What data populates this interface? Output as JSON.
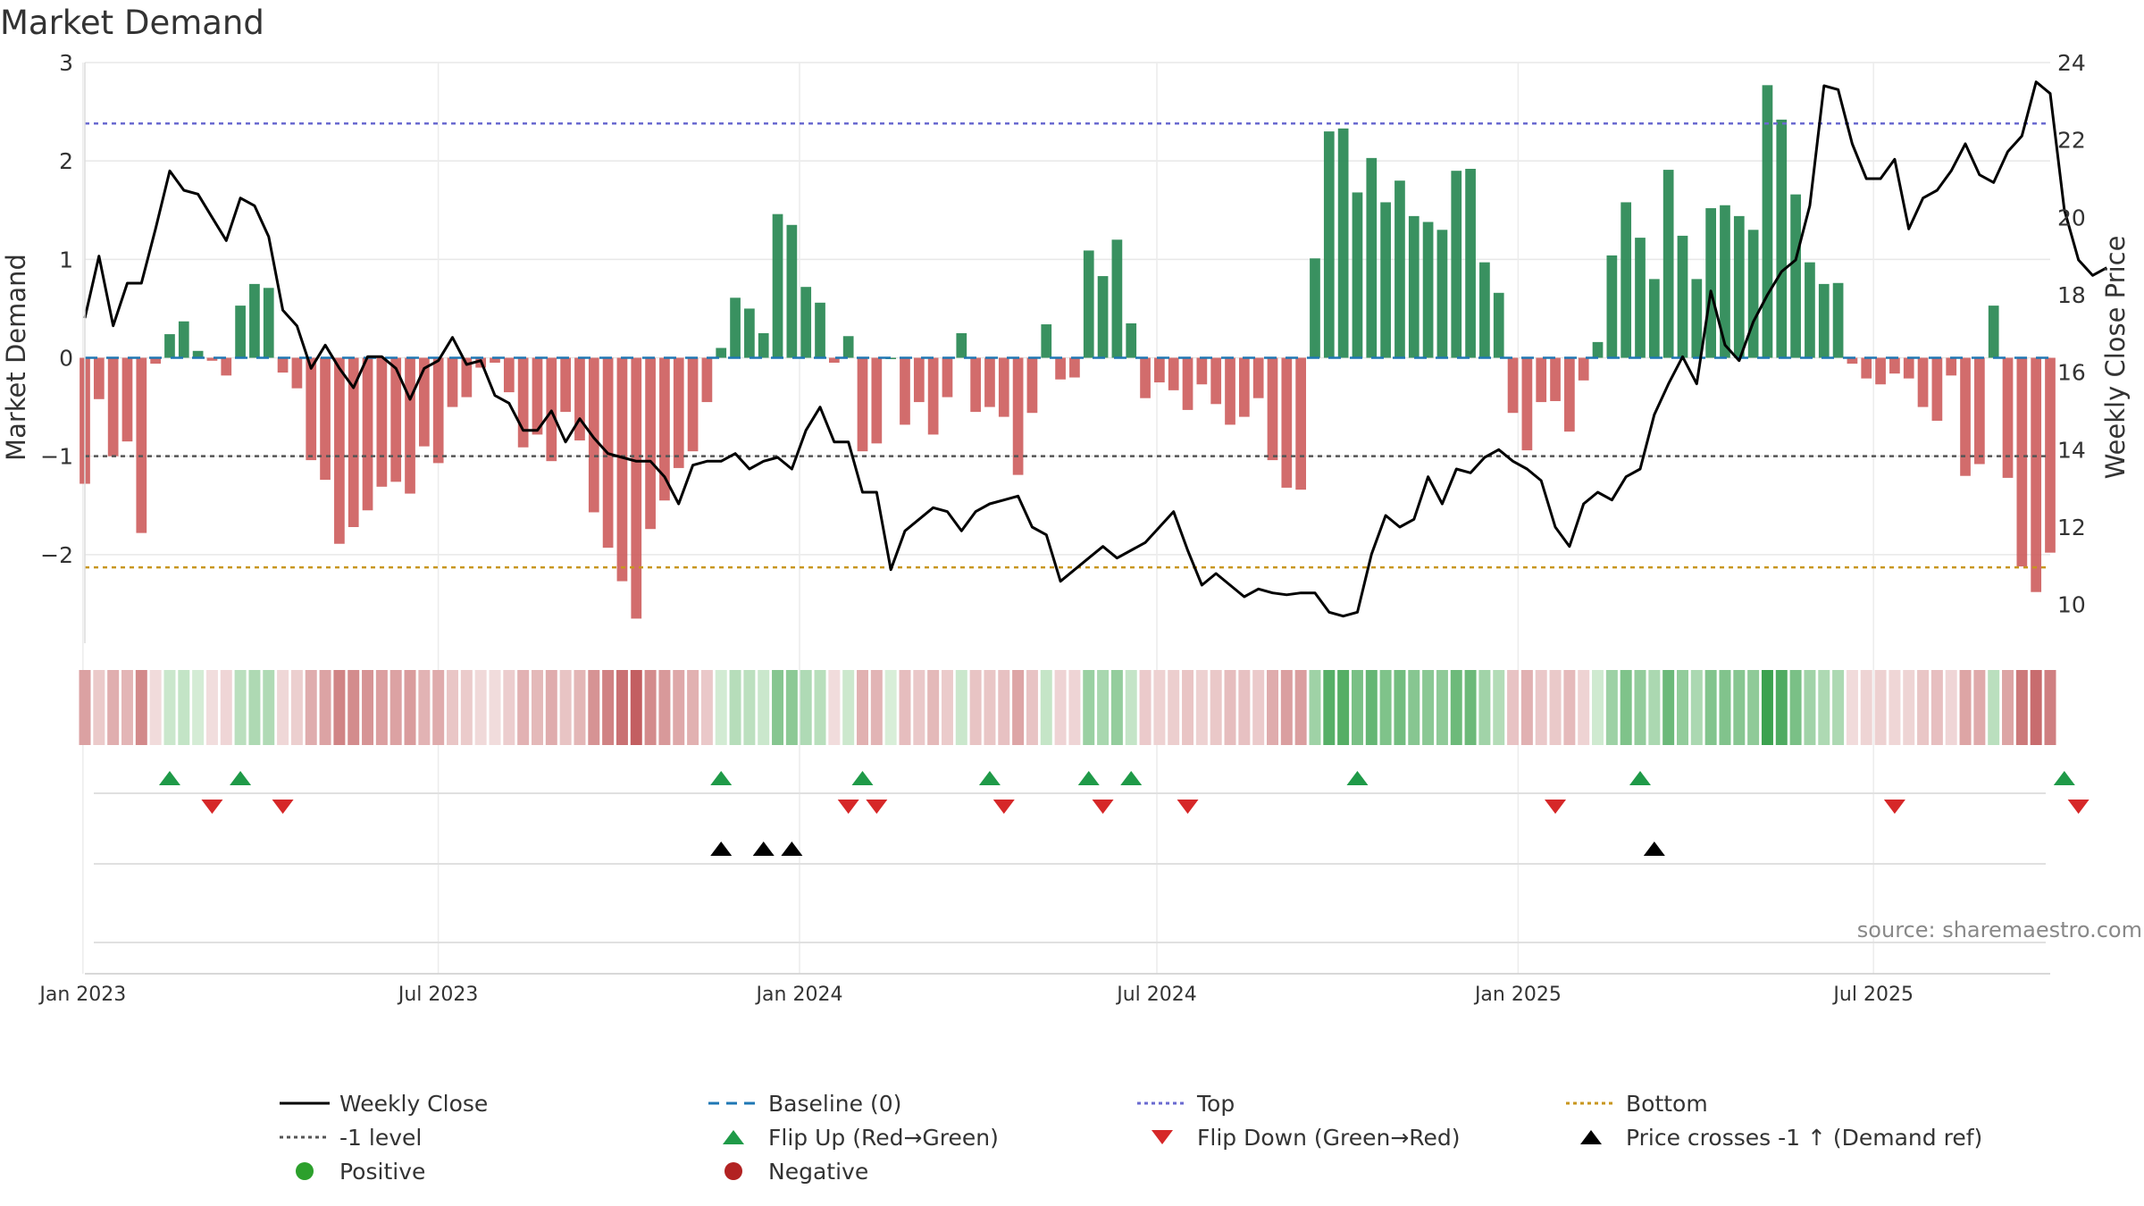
{
  "chart_data": {
    "type": "bar+line",
    "title": "Market Demand",
    "ylabel_left": "Market Demand",
    "ylabel_right": "Weekly Close Price",
    "source": "source: sharemaestro.com",
    "ylim_left": [
      -2.9,
      3.0
    ],
    "ylim_right": [
      9.0,
      24.0
    ],
    "yticks_left": [
      3,
      2,
      1,
      0,
      -1,
      -2
    ],
    "ytick_labels_left": [
      "3",
      "2",
      "1",
      "0",
      "−1",
      "−2"
    ],
    "yticks_right": [
      24,
      22,
      20,
      18,
      16,
      14,
      12,
      10
    ],
    "x_start": "2023-01-02",
    "x_end": "2025-09-29",
    "x_tick_dates": [
      "2023-01-01",
      "2023-07-01",
      "2024-01-01",
      "2024-07-01",
      "2025-01-01",
      "2025-07-01"
    ],
    "x_tick_labels": [
      "Jan 2023",
      "Jul 2023",
      "Jan 2024",
      "Jul 2024",
      "Jan 2025",
      "Jul 2025"
    ],
    "levels": {
      "top": 2.38,
      "minus_one": -1.0,
      "bottom": -2.13,
      "baseline": 0
    },
    "colors": {
      "positive": "#2e8b57",
      "negative": "#cd5c5c",
      "close_line": "#000000",
      "top_line": "#6a6ad0",
      "bottom_line": "#c8961e",
      "minus_one_line": "#555555",
      "baseline": "#1f77b4",
      "flip_up": "#1f9a48",
      "flip_down": "#d62728",
      "cross_marker": "#000000",
      "grid": "#e8e8e8",
      "dot_positive": "#2ca02c",
      "dot_negative": "#b22222"
    },
    "demand": [
      -1.28,
      -0.42,
      -1.0,
      -0.85,
      -1.78,
      -0.06,
      0.24,
      0.37,
      0.07,
      -0.03,
      -0.18,
      0.53,
      0.75,
      0.71,
      -0.15,
      -0.31,
      -1.04,
      -1.24,
      -1.89,
      -1.72,
      -1.55,
      -1.31,
      -1.26,
      -1.38,
      -0.9,
      -1.07,
      -0.5,
      -0.4,
      -0.1,
      -0.05,
      -0.35,
      -0.91,
      -0.78,
      -1.05,
      -0.55,
      -0.84,
      -1.57,
      -1.93,
      -2.27,
      -2.65,
      -1.74,
      -1.45,
      -1.12,
      -0.95,
      -0.45,
      0.1,
      0.61,
      0.5,
      0.25,
      1.46,
      1.35,
      0.72,
      0.56,
      -0.05,
      0.22,
      -0.95,
      -0.87,
      0.0,
      -0.68,
      -0.45,
      -0.78,
      -0.4,
      0.25,
      -0.55,
      -0.5,
      -0.6,
      -1.19,
      -0.56,
      0.34,
      -0.22,
      -0.2,
      1.09,
      0.83,
      1.2,
      0.35,
      -0.41,
      -0.25,
      -0.33,
      -0.53,
      -0.27,
      -0.47,
      -0.68,
      -0.6,
      -0.41,
      -1.04,
      -1.32,
      -1.34,
      1.01,
      2.3,
      2.33,
      1.68,
      2.03,
      1.58,
      1.8,
      1.44,
      1.38,
      1.3,
      1.9,
      1.92,
      0.97,
      0.66,
      -0.56,
      -0.94,
      -0.45,
      -0.44,
      -0.75,
      -0.23,
      0.16,
      1.04,
      1.58,
      1.22,
      0.8,
      1.91,
      1.24,
      0.8,
      1.52,
      1.55,
      1.44,
      1.3,
      2.77,
      2.42,
      1.66,
      0.97,
      0.75,
      0.76,
      -0.06,
      -0.21,
      -0.27,
      -0.16,
      -0.21,
      -0.5,
      -0.64,
      -0.18,
      -1.2,
      -1.08,
      0.53,
      -1.22,
      -2.12,
      -2.38,
      -1.98
    ],
    "close": [
      17.4,
      19.0,
      17.2,
      18.3,
      18.3,
      19.7,
      21.2,
      20.7,
      20.6,
      20.0,
      19.4,
      20.5,
      20.3,
      19.5,
      17.6,
      17.2,
      16.1,
      16.7,
      16.1,
      15.6,
      16.4,
      16.4,
      16.1,
      15.3,
      16.1,
      16.3,
      16.9,
      16.2,
      16.3,
      15.4,
      15.2,
      14.5,
      14.5,
      15.0,
      14.2,
      14.8,
      14.3,
      13.9,
      13.8,
      13.7,
      13.7,
      13.3,
      12.6,
      13.6,
      13.7,
      13.7,
      13.9,
      13.5,
      13.7,
      13.8,
      13.5,
      14.5,
      15.1,
      14.2,
      14.2,
      12.9,
      12.9,
      10.9,
      11.9,
      12.2,
      12.5,
      12.4,
      11.9,
      12.4,
      12.6,
      12.7,
      12.8,
      12.0,
      11.8,
      10.6,
      10.9,
      11.2,
      11.5,
      11.2,
      11.4,
      11.6,
      12.0,
      12.4,
      11.4,
      10.5,
      10.8,
      10.5,
      10.2,
      10.4,
      10.3,
      10.25,
      10.3,
      10.3,
      9.8,
      9.7,
      9.8,
      11.3,
      12.3,
      12.0,
      12.2,
      13.3,
      12.6,
      13.5,
      13.4,
      13.8,
      14.0,
      13.7,
      13.5,
      13.2,
      12.0,
      11.5,
      12.6,
      12.9,
      12.7,
      13.3,
      13.5,
      14.9,
      15.7,
      16.4,
      15.7,
      18.1,
      16.7,
      16.3,
      17.3,
      18.0,
      18.6,
      18.9,
      20.3,
      23.4,
      23.3,
      21.9,
      21.0,
      21.0,
      21.5,
      19.7,
      20.5,
      20.7,
      21.2,
      21.9,
      21.1,
      20.9,
      21.7,
      22.1,
      23.5,
      23.2,
      20.2,
      18.9,
      18.5,
      18.7
    ],
    "flip_up_weeks": [
      6,
      11,
      45,
      55,
      64,
      71,
      74,
      90,
      110,
      140
    ],
    "flip_down_weeks": [
      9,
      14,
      54,
      56,
      65,
      72,
      78,
      104,
      128,
      141
    ],
    "price_cross_weeks": [
      45,
      48,
      50,
      111
    ],
    "legend": [
      {
        "label": "Weekly Close",
        "symbol": "line-solid",
        "color": "#000000"
      },
      {
        "label": "Baseline (0)",
        "symbol": "line-dashed",
        "color": "#1f77b4"
      },
      {
        "label": "Top",
        "symbol": "line-dotted",
        "color": "#6a6ad0"
      },
      {
        "label": "Bottom",
        "symbol": "line-dotted",
        "color": "#c8961e"
      },
      {
        "label": "-1 level",
        "symbol": "line-dotted",
        "color": "#555555"
      },
      {
        "label": "Flip Up (Red→Green)",
        "symbol": "tri-up",
        "color": "#1f9a48"
      },
      {
        "label": "Flip Down (Green→Red)",
        "symbol": "tri-down",
        "color": "#d62728"
      },
      {
        "label": "Price crosses -1 ↑ (Demand ref)",
        "symbol": "tri-up",
        "color": "#000000"
      },
      {
        "label": "Positive",
        "symbol": "dot",
        "color": "#2ca02c"
      },
      {
        "label": "Negative",
        "symbol": "dot",
        "color": "#b22222"
      }
    ]
  }
}
